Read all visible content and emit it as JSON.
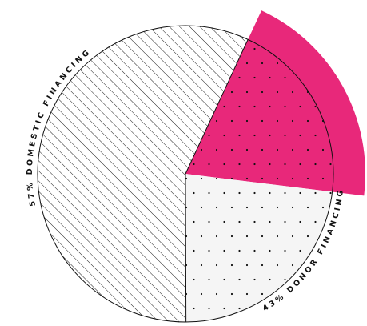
{
  "chart_data": {
    "type": "pie",
    "categories": [
      "57% DOMESTIC FINANCING",
      "43% DONOR FINANCING"
    ],
    "values": [
      57,
      43
    ],
    "colors": [
      "#ffffff",
      "#f5f5f5"
    ],
    "donor_parts": {
      "values": [
        20,
        23
      ],
      "colors": [
        "#e8287a",
        "#f5f5f5"
      ]
    }
  }
}
